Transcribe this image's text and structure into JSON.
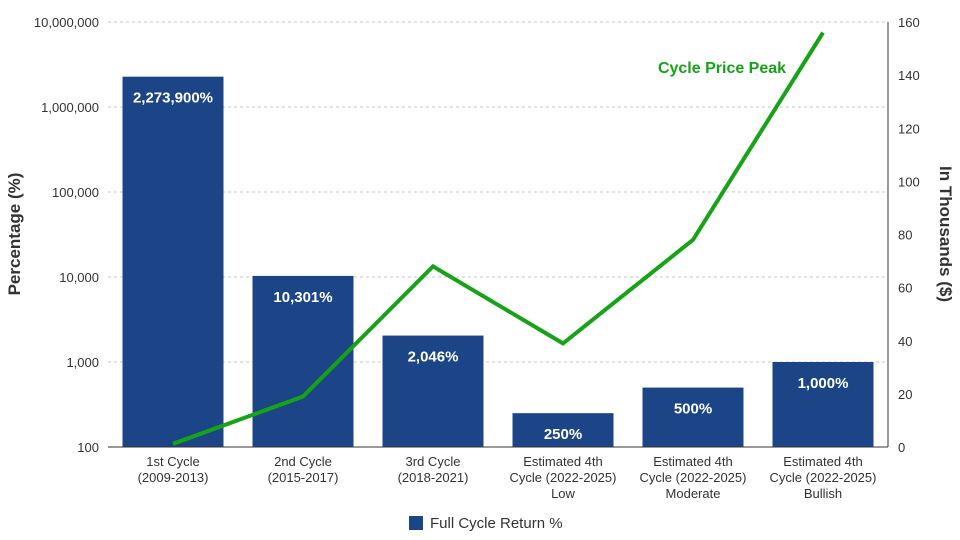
{
  "chart_data": {
    "type": "bar",
    "categories": [
      [
        "1st Cycle",
        "(2009-2013)"
      ],
      [
        "2nd Cycle",
        "(2015-2017)"
      ],
      [
        "3rd Cycle",
        "(2018-2021)"
      ],
      [
        "Estimated 4th",
        "Cycle (2022-2025)",
        "Low"
      ],
      [
        "Estimated 4th",
        "Cycle (2022-2025)",
        "Moderate"
      ],
      [
        "Estimated 4th",
        "Cycle (2022-2025)",
        "Bullish"
      ]
    ],
    "series": [
      {
        "name": "Full Cycle Return %",
        "type": "bar",
        "axis": "left",
        "color": "#1c4587",
        "values": [
          2273900,
          10301,
          2046,
          250,
          500,
          1000
        ],
        "labels": [
          "2,273,900%",
          "10,301%",
          "2,046%",
          "250%",
          "500%",
          "1,000%"
        ]
      },
      {
        "type": "line",
        "axis": "right",
        "color": "#16a316",
        "values": [
          1.2,
          19,
          68,
          39,
          78,
          156
        ]
      }
    ],
    "annotation": {
      "text": "Cycle Price Peak",
      "color": "#16a316"
    },
    "ylabel": "Percentage (%)",
    "y2label": "In Thousands ($)",
    "yscale": "log",
    "ylim": [
      100,
      10000000
    ],
    "yticks": [
      100,
      1000,
      10000,
      100000,
      1000000,
      10000000
    ],
    "yticklabels": [
      "100",
      "1,000",
      "10,000",
      "100,000",
      "1,000,000",
      "10,000,000"
    ],
    "y2lim": [
      0,
      160
    ],
    "y2ticks": [
      0,
      20,
      40,
      60,
      80,
      100,
      120,
      140,
      160
    ],
    "y2ticklabels": [
      "0",
      "20",
      "40",
      "60",
      "80",
      "100",
      "120",
      "140",
      "160"
    ],
    "grid": "dashed horizontal",
    "legend": {
      "position": "bottom-center",
      "entries": [
        "Full Cycle Return %"
      ]
    }
  }
}
